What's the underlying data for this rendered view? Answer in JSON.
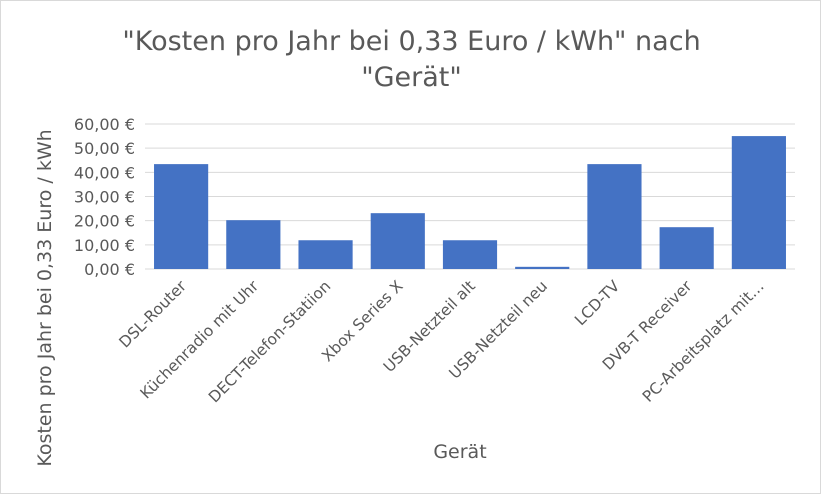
{
  "chart_data": {
    "type": "bar",
    "title_lines": [
      "\"Kosten pro Jahr bei 0,33 Euro / kWh\" nach",
      "\"Gerät\""
    ],
    "xlabel": "Gerät",
    "ylabel": "Kosten pro Jahr bei 0,33 Euro / kWh",
    "ylim": [
      0,
      60
    ],
    "y_ticks": [
      0,
      10,
      20,
      30,
      40,
      50,
      60
    ],
    "y_tick_labels": [
      "0,00 €",
      "10,00 €",
      "20,00 €",
      "30,00 €",
      "40,00 €",
      "50,00 €",
      "60,00 €"
    ],
    "categories": [
      "DSL-Router",
      "Küchenradio mit Uhr",
      "DECT-Telefon-Statiion",
      "Xbox Series X",
      "USB-Netzteil alt",
      "USB-Netzteil neu",
      "LCD-TV",
      "DVB-T Receiver",
      "PC-Arbeitsplatz mit…"
    ],
    "values": [
      43.4,
      20.2,
      11.9,
      23.1,
      11.9,
      0.9,
      43.4,
      17.3,
      55.0
    ],
    "bar_color": "#4472C4",
    "grid": true
  }
}
